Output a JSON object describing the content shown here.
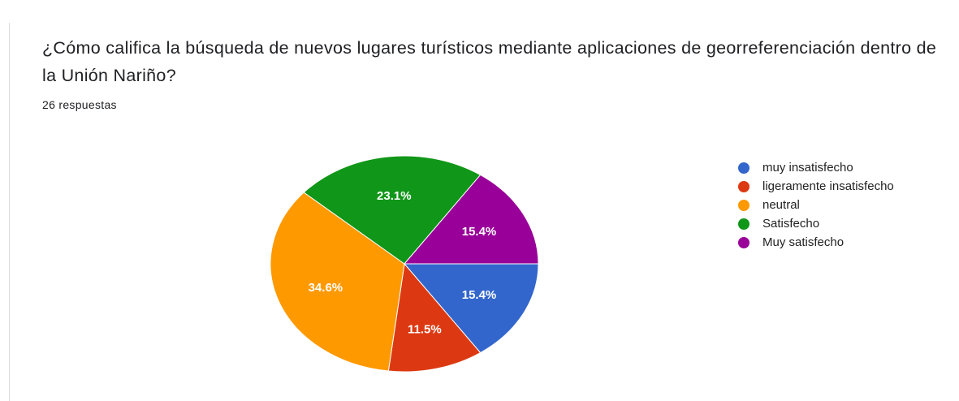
{
  "chart_data": {
    "type": "pie",
    "title": "¿Cómo califica la búsqueda de nuevos lugares turísticos mediante aplicaciones de georreferenciación dentro de la Unión Nariño?",
    "subtitle": "26 respuestas",
    "categories": [
      "muy insatisfecho",
      "ligeramente insatisfecho",
      "neutral",
      "Satisfecho",
      "Muy satisfecho"
    ],
    "values": [
      15.4,
      11.5,
      34.6,
      23.1,
      15.4
    ],
    "value_labels": [
      "15.4%",
      "11.5%",
      "34.6%",
      "23.1%",
      "15.4%"
    ],
    "colors": [
      "#3366cc",
      "#dc3912",
      "#ff9900",
      "#109618",
      "#990099"
    ],
    "legend": "right"
  }
}
